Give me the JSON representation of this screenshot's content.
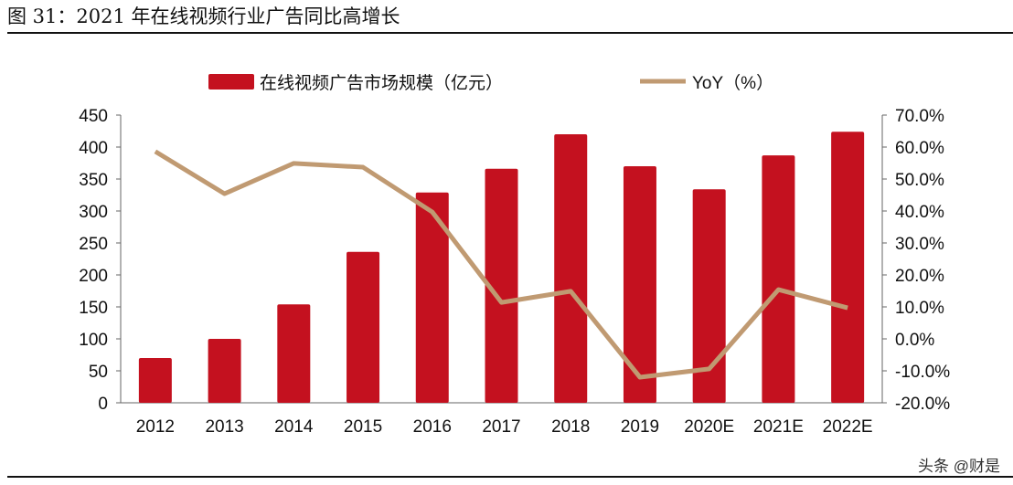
{
  "title": "图 31：2021 年在线视频行业广告同比高增长",
  "watermark": "头条 @财是",
  "colors": {
    "bar": "#c4111f",
    "line": "#c09a72"
  },
  "chart_data": {
    "type": "bar+line",
    "categories": [
      "2012",
      "2013",
      "2014",
      "2015",
      "2016",
      "2017",
      "2018",
      "2019",
      "2020E",
      "2021E",
      "2022E"
    ],
    "series": [
      {
        "name": "在线视频广告市场规模（亿元）",
        "type": "bar",
        "axis": "left",
        "values": [
          70,
          100,
          154,
          236,
          329,
          366,
          420,
          370,
          334,
          387,
          424
        ]
      },
      {
        "name": "YoY（%）",
        "type": "line",
        "axis": "right",
        "values": [
          58.6,
          45.4,
          54.9,
          53.7,
          39.7,
          11.4,
          14.9,
          -12.0,
          -9.4,
          15.4,
          9.7
        ]
      }
    ],
    "left_ylim": [
      0,
      450
    ],
    "left_ticks": [
      "0",
      "50",
      "100",
      "150",
      "200",
      "250",
      "300",
      "350",
      "400",
      "450"
    ],
    "right_ylim": [
      -20,
      70
    ],
    "right_ticks": [
      "-20.0%",
      "-10.0%",
      "0.0%",
      "10.0%",
      "20.0%",
      "30.0%",
      "40.0%",
      "50.0%",
      "60.0%",
      "70.0%"
    ],
    "legend": "top",
    "grid": false
  }
}
